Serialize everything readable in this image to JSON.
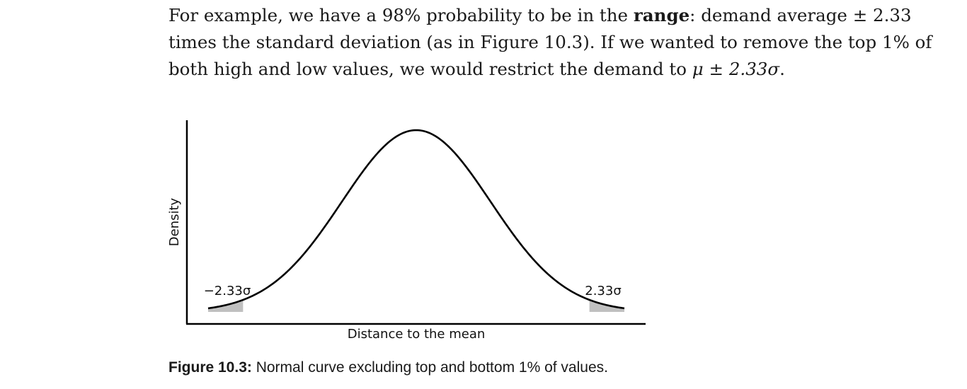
{
  "paragraph": {
    "line1_pre": "For example, we have a 98% probability to be in the ",
    "line1_bold": "range",
    "line1_post": ": demand average ± 2.33",
    "line2": "times the standard deviation (as in Figure 10.3). If we wanted to remove the top 1% of",
    "line3_pre": "both high and low values, we would restrict the demand to ",
    "line3_math": "μ ± 2.33σ",
    "line3_post": "."
  },
  "chart_data": {
    "type": "area",
    "title": "",
    "xlabel": "Distance to the mean",
    "ylabel": "Density",
    "xlim": [
      -2.8,
      2.8
    ],
    "series": [
      {
        "function": "standard normal density",
        "mean": 0,
        "sd": 1
      }
    ],
    "shaded_regions": [
      {
        "from": -2.8,
        "to": -2.33,
        "color": "#c0c0c0"
      },
      {
        "from": 2.33,
        "to": 2.8,
        "color": "#c0c0c0"
      }
    ],
    "annotations": [
      {
        "text": "−2.33σ",
        "x": -2.33
      },
      {
        "text": "2.33σ",
        "x": 2.33
      }
    ],
    "grid": false,
    "colors": {
      "curve": "#000000",
      "shade": "#c0c0c0",
      "axis": "#000000"
    }
  },
  "caption": {
    "label": "Figure 10.3:",
    "text": " Normal curve excluding top and bottom 1% of values."
  }
}
